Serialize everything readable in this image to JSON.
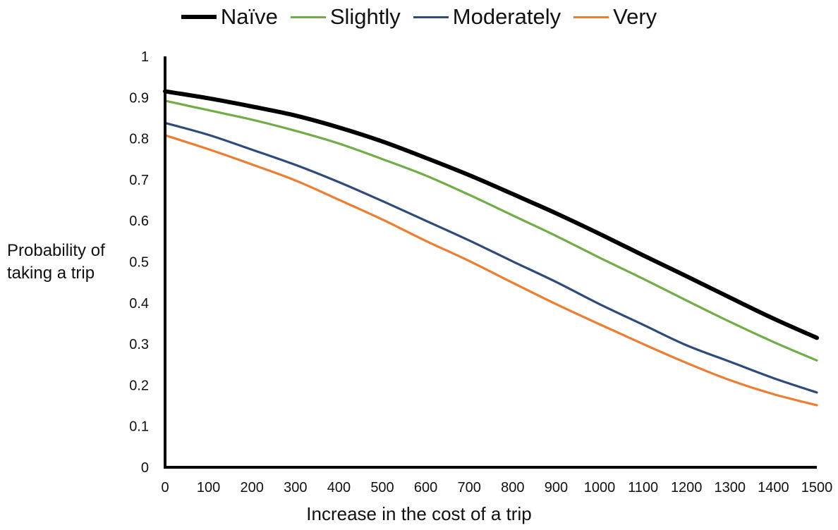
{
  "chart_data": {
    "type": "line",
    "title": "",
    "xlabel": "Increase in the cost of a trip",
    "ylabel": "Probability of taking a trip",
    "xlim": [
      0,
      1500
    ],
    "ylim": [
      0,
      1
    ],
    "x_ticks": [
      0,
      100,
      200,
      300,
      400,
      500,
      600,
      700,
      800,
      900,
      1000,
      1100,
      1200,
      1300,
      1400,
      1500
    ],
    "y_ticks": [
      0,
      0.1,
      0.2,
      0.3,
      0.4,
      0.5,
      0.6,
      0.7,
      0.8,
      0.9,
      1
    ],
    "y_tick_labels": [
      "0",
      "0.1",
      "0.2",
      "0.3",
      "0.4",
      "0.5",
      "0.6",
      "0.7",
      "0.8",
      "0.9",
      "1"
    ],
    "grid": false,
    "legend_position": "top",
    "x": [
      0,
      100,
      200,
      300,
      400,
      500,
      600,
      700,
      800,
      900,
      1000,
      1100,
      1200,
      1300,
      1400,
      1500
    ],
    "series": [
      {
        "name": "Naïve",
        "color": "#000000",
        "width": "bold",
        "values": [
          0.915,
          0.898,
          0.878,
          0.856,
          0.827,
          0.793,
          0.753,
          0.711,
          0.665,
          0.618,
          0.568,
          0.516,
          0.465,
          0.413,
          0.362,
          0.315
        ]
      },
      {
        "name": "Slightly",
        "color": "#70ad47",
        "width": "normal",
        "values": [
          0.892,
          0.869,
          0.846,
          0.819,
          0.788,
          0.75,
          0.71,
          0.663,
          0.613,
          0.563,
          0.51,
          0.459,
          0.406,
          0.354,
          0.305,
          0.26
        ]
      },
      {
        "name": "Moderately",
        "color": "#2f4b7c",
        "width": "normal",
        "values": [
          0.838,
          0.809,
          0.773,
          0.736,
          0.694,
          0.648,
          0.6,
          0.552,
          0.501,
          0.451,
          0.397,
          0.347,
          0.297,
          0.257,
          0.217,
          0.182
        ]
      },
      {
        "name": "Very",
        "color": "#ed7d31",
        "width": "normal",
        "values": [
          0.808,
          0.774,
          0.737,
          0.698,
          0.651,
          0.603,
          0.551,
          0.502,
          0.449,
          0.397,
          0.348,
          0.3,
          0.254,
          0.212,
          0.178,
          0.151
        ]
      }
    ]
  }
}
